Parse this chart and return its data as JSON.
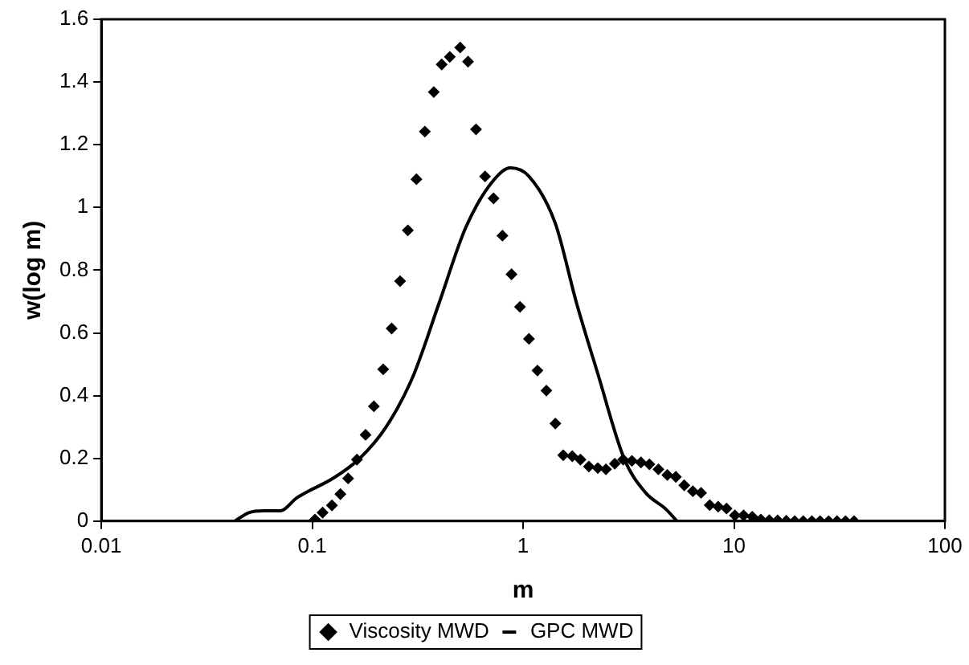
{
  "chart_data": {
    "type": "scatter",
    "xlabel": "m",
    "ylabel": "w(log m)",
    "log": "x",
    "grid": false,
    "legend": "bottom",
    "xlim": [
      0.01,
      100
    ],
    "xticks": [
      0.01,
      0.1,
      1,
      10,
      100
    ],
    "ylim": [
      0,
      1.6
    ],
    "yticks": [
      0,
      0.2,
      0.4,
      0.6,
      0.8,
      1,
      1.2,
      1.4,
      1.6
    ],
    "series": [
      {
        "name": "Viscosity MWD",
        "marker": "diamond",
        "color": "#000000",
        "x": [
          0.103,
          0.112,
          0.124,
          0.136,
          0.148,
          0.163,
          0.179,
          0.196,
          0.217,
          0.238,
          0.261,
          0.284,
          0.312,
          0.342,
          0.377,
          0.411,
          0.449,
          0.503,
          0.548,
          0.598,
          0.66,
          0.724,
          0.798,
          0.881,
          0.966,
          1.066,
          1.169,
          1.289,
          1.422,
          1.55,
          1.71,
          1.87,
          2.05,
          2.26,
          2.47,
          2.72,
          2.98,
          3.28,
          3.62,
          3.97,
          4.38,
          4.83,
          5.3,
          5.81,
          6.38,
          6.98,
          7.67,
          8.41,
          9.22,
          10.1,
          11.1,
          12.2,
          13.4,
          14.7,
          16.1,
          17.7,
          19.4,
          21.3,
          23.4,
          25.6,
          28.1,
          30.8,
          33.8,
          37.1
        ],
        "values": [
          0.005,
          0.027,
          0.05,
          0.086,
          0.136,
          0.196,
          0.275,
          0.366,
          0.484,
          0.614,
          0.765,
          0.927,
          1.09,
          1.242,
          1.368,
          1.456,
          1.48,
          1.51,
          1.465,
          1.249,
          1.099,
          1.029,
          0.91,
          0.787,
          0.683,
          0.581,
          0.48,
          0.416,
          0.311,
          0.21,
          0.207,
          0.196,
          0.174,
          0.169,
          0.165,
          0.183,
          0.196,
          0.192,
          0.187,
          0.181,
          0.165,
          0.147,
          0.141,
          0.114,
          0.095,
          0.09,
          0.051,
          0.046,
          0.04,
          0.018,
          0.018,
          0.014,
          0.005,
          0.003,
          0.002,
          0.001,
          0,
          0,
          0,
          0,
          0,
          0,
          0,
          0
        ]
      },
      {
        "name": "GPC MWD",
        "type": "line",
        "marker": "none",
        "line_style": "solid",
        "color": "#000000",
        "x": [
          0.043,
          0.05,
          0.059,
          0.071,
          0.084,
          0.094,
          0.126,
          0.168,
          0.224,
          0.299,
          0.4,
          0.533,
          0.711,
          0.871,
          1.066,
          1.42,
          1.79,
          2.26,
          3.01,
          3.79,
          4.77,
          5.36
        ],
        "values": [
          0,
          0.027,
          0.033,
          0.033,
          0.073,
          0.092,
          0.137,
          0.2,
          0.3,
          0.458,
          0.696,
          0.934,
          1.08,
          1.126,
          1.099,
          0.95,
          0.696,
          0.47,
          0.2,
          0.092,
          0.037,
          0
        ]
      }
    ]
  }
}
